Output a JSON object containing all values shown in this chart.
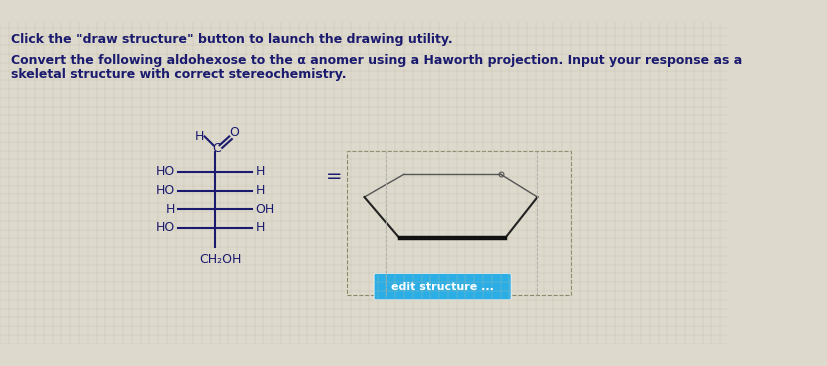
{
  "background_color": "#ddd9cc",
  "title_line1": "Click the \"draw structure\" button to launch the drawing utility.",
  "title_line2": "Convert the following aldohexose to the α anomer using a Haworth projection. Input your response as a",
  "title_line3": "skeletal structure with correct stereochemistry.",
  "fischer_rows": [
    {
      "left": "HO",
      "right": "H"
    },
    {
      "left": "HO",
      "right": "H"
    },
    {
      "left": "H",
      "right": "OH"
    },
    {
      "left": "HO",
      "right": "H"
    }
  ],
  "bottom_label": "CH₂OH",
  "equals_sign": "=",
  "edit_button_text": "edit structure ...",
  "edit_button_color": "#2aaee5",
  "text_color": "#1a1a6e",
  "struct_color": "#1a1a6e",
  "grid_color": "#c0bba8"
}
